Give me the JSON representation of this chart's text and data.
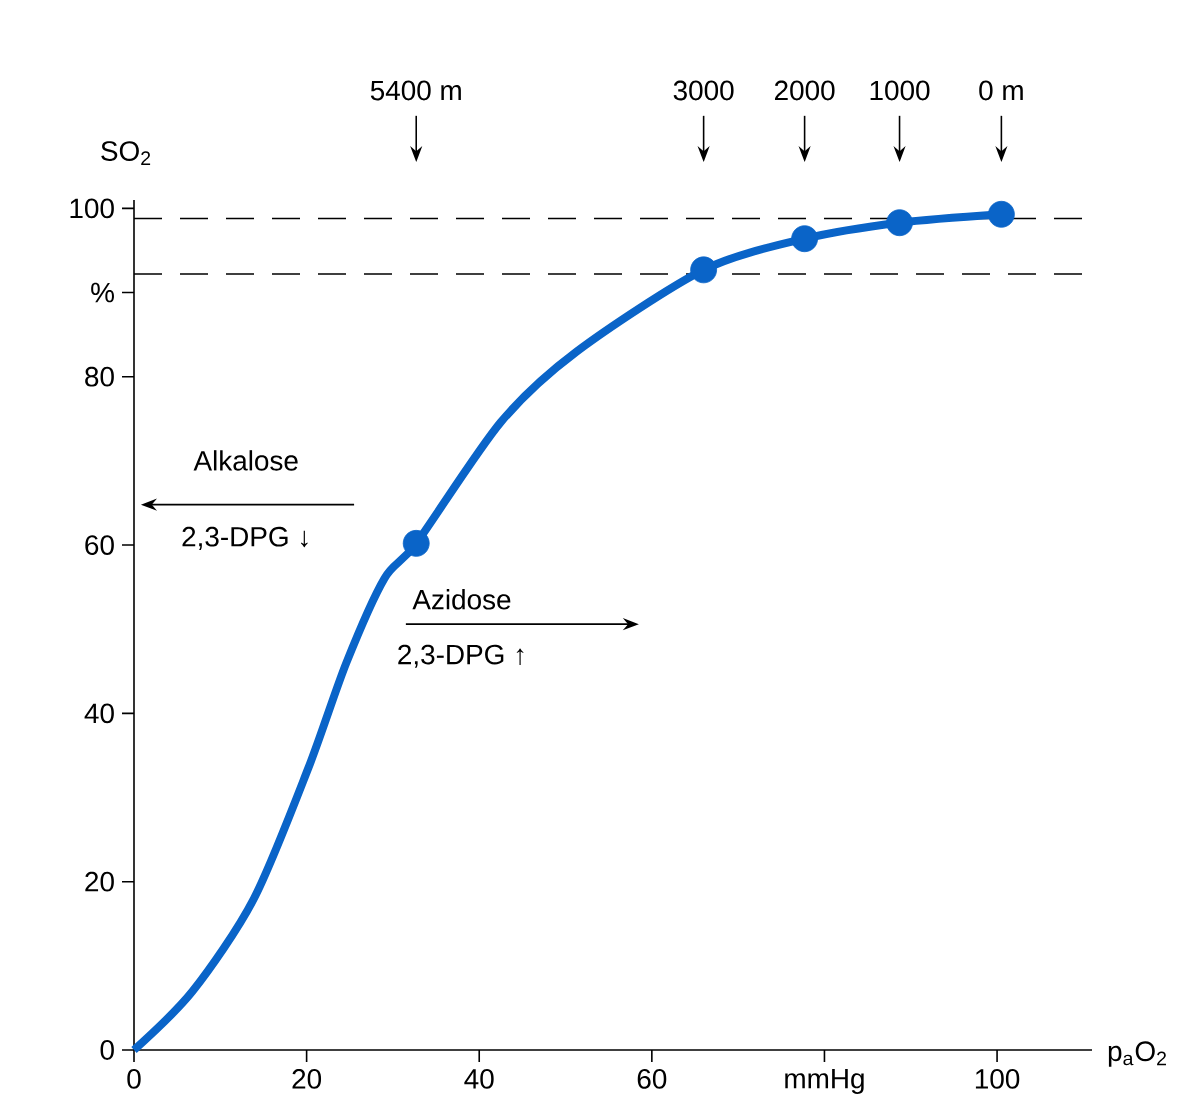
{
  "chart_data": {
    "type": "line",
    "xlabel": "p$_{a}$O$_{2}$",
    "ylabel": "SO$_{2}$",
    "xlim": [
      0,
      111
    ],
    "ylim": [
      0,
      101
    ],
    "xticks": [
      0,
      20,
      40,
      60,
      {
        "value": 80,
        "label": "mmHg"
      },
      100
    ],
    "yticks": [
      0,
      20,
      40,
      60,
      80,
      {
        "value": 90,
        "label": "%"
      },
      100
    ],
    "series": [
      {
        "color": "#0a64c8",
        "marker": "none",
        "x": [
          0,
          6.8,
          13.9,
          20.2,
          24.6,
          29,
          32.7,
          42.5,
          51.3,
          66,
          77.7,
          88.7,
          100.5
        ],
        "values": [
          0,
          7,
          18,
          33.5,
          46,
          56,
          60.2,
          74.6,
          83,
          92.7,
          96.4,
          98.3,
          99.3
        ]
      },
      {
        "type": "scatter",
        "color": "#0a64c8",
        "marker": "circle",
        "x": [
          32.7,
          66,
          77.7,
          88.7,
          100.5
        ],
        "values": [
          60.2,
          92.7,
          96.4,
          98.3,
          99.3
        ]
      }
    ],
    "ref_lines": [
      {
        "axis": "y",
        "value": 98.8,
        "color": "#000000",
        "line_style": "dashed"
      },
      {
        "axis": "y",
        "value": 92.2,
        "color": "#000000",
        "line_style": "dashed"
      }
    ],
    "annotations": [
      "5400 m",
      "3000",
      "2000",
      "1000",
      "0 m",
      "Alkalose",
      "2,3-DPG ↓",
      "Azidose",
      "2,3-DPG ↑"
    ]
  }
}
